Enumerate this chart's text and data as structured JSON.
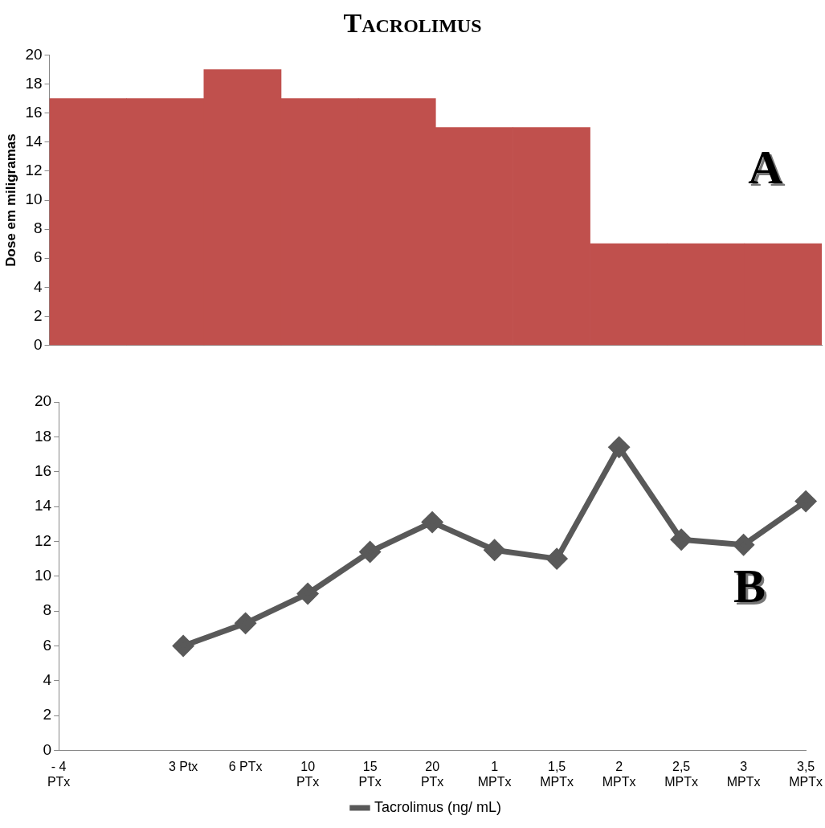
{
  "chart_data": [
    {
      "type": "bar",
      "title": "Tacrolimus",
      "ylabel": "Dose em miligramas",
      "categories": [
        null,
        null,
        null,
        null,
        null,
        null,
        null,
        null,
        null,
        null
      ],
      "series": [
        {
          "color": "#c0504d",
          "values": [
            17,
            17,
            19,
            17,
            17,
            15,
            15,
            7,
            7,
            7
          ]
        }
      ],
      "ylim": [
        0,
        20
      ],
      "yticks": [
        0,
        2,
        4,
        6,
        8,
        10,
        12,
        14,
        16,
        18,
        20
      ],
      "grid": false,
      "legend": false,
      "tick_labels": "y",
      "annotations": [
        "A"
      ]
    },
    {
      "type": "line",
      "categories": [
        "- 4 PTx",
        null,
        "3 Ptx",
        "6 PTx",
        "10 PTx",
        "15 PTx",
        "20 PTx",
        "1 MPTx",
        "1,5 MPTx",
        "2 MPTx",
        "2,5 MPTx",
        "3 MPTx",
        "3,5 MPTx"
      ],
      "series": [
        {
          "name": "Tacrolimus (ng/ mL)",
          "color": "#595959",
          "values": [
            null,
            null,
            6,
            7.3,
            9,
            11.4,
            13.1,
            11.5,
            11,
            17.4,
            12.1,
            11.8,
            14.3
          ]
        }
      ],
      "ylim": [
        0,
        20
      ],
      "yticks": [
        0,
        2,
        4,
        6,
        8,
        10,
        12,
        14,
        16,
        18,
        20
      ],
      "grid": false,
      "legend": "bottom",
      "marker": "diamond",
      "line_style": "solid",
      "annotations": [
        "B"
      ]
    }
  ]
}
